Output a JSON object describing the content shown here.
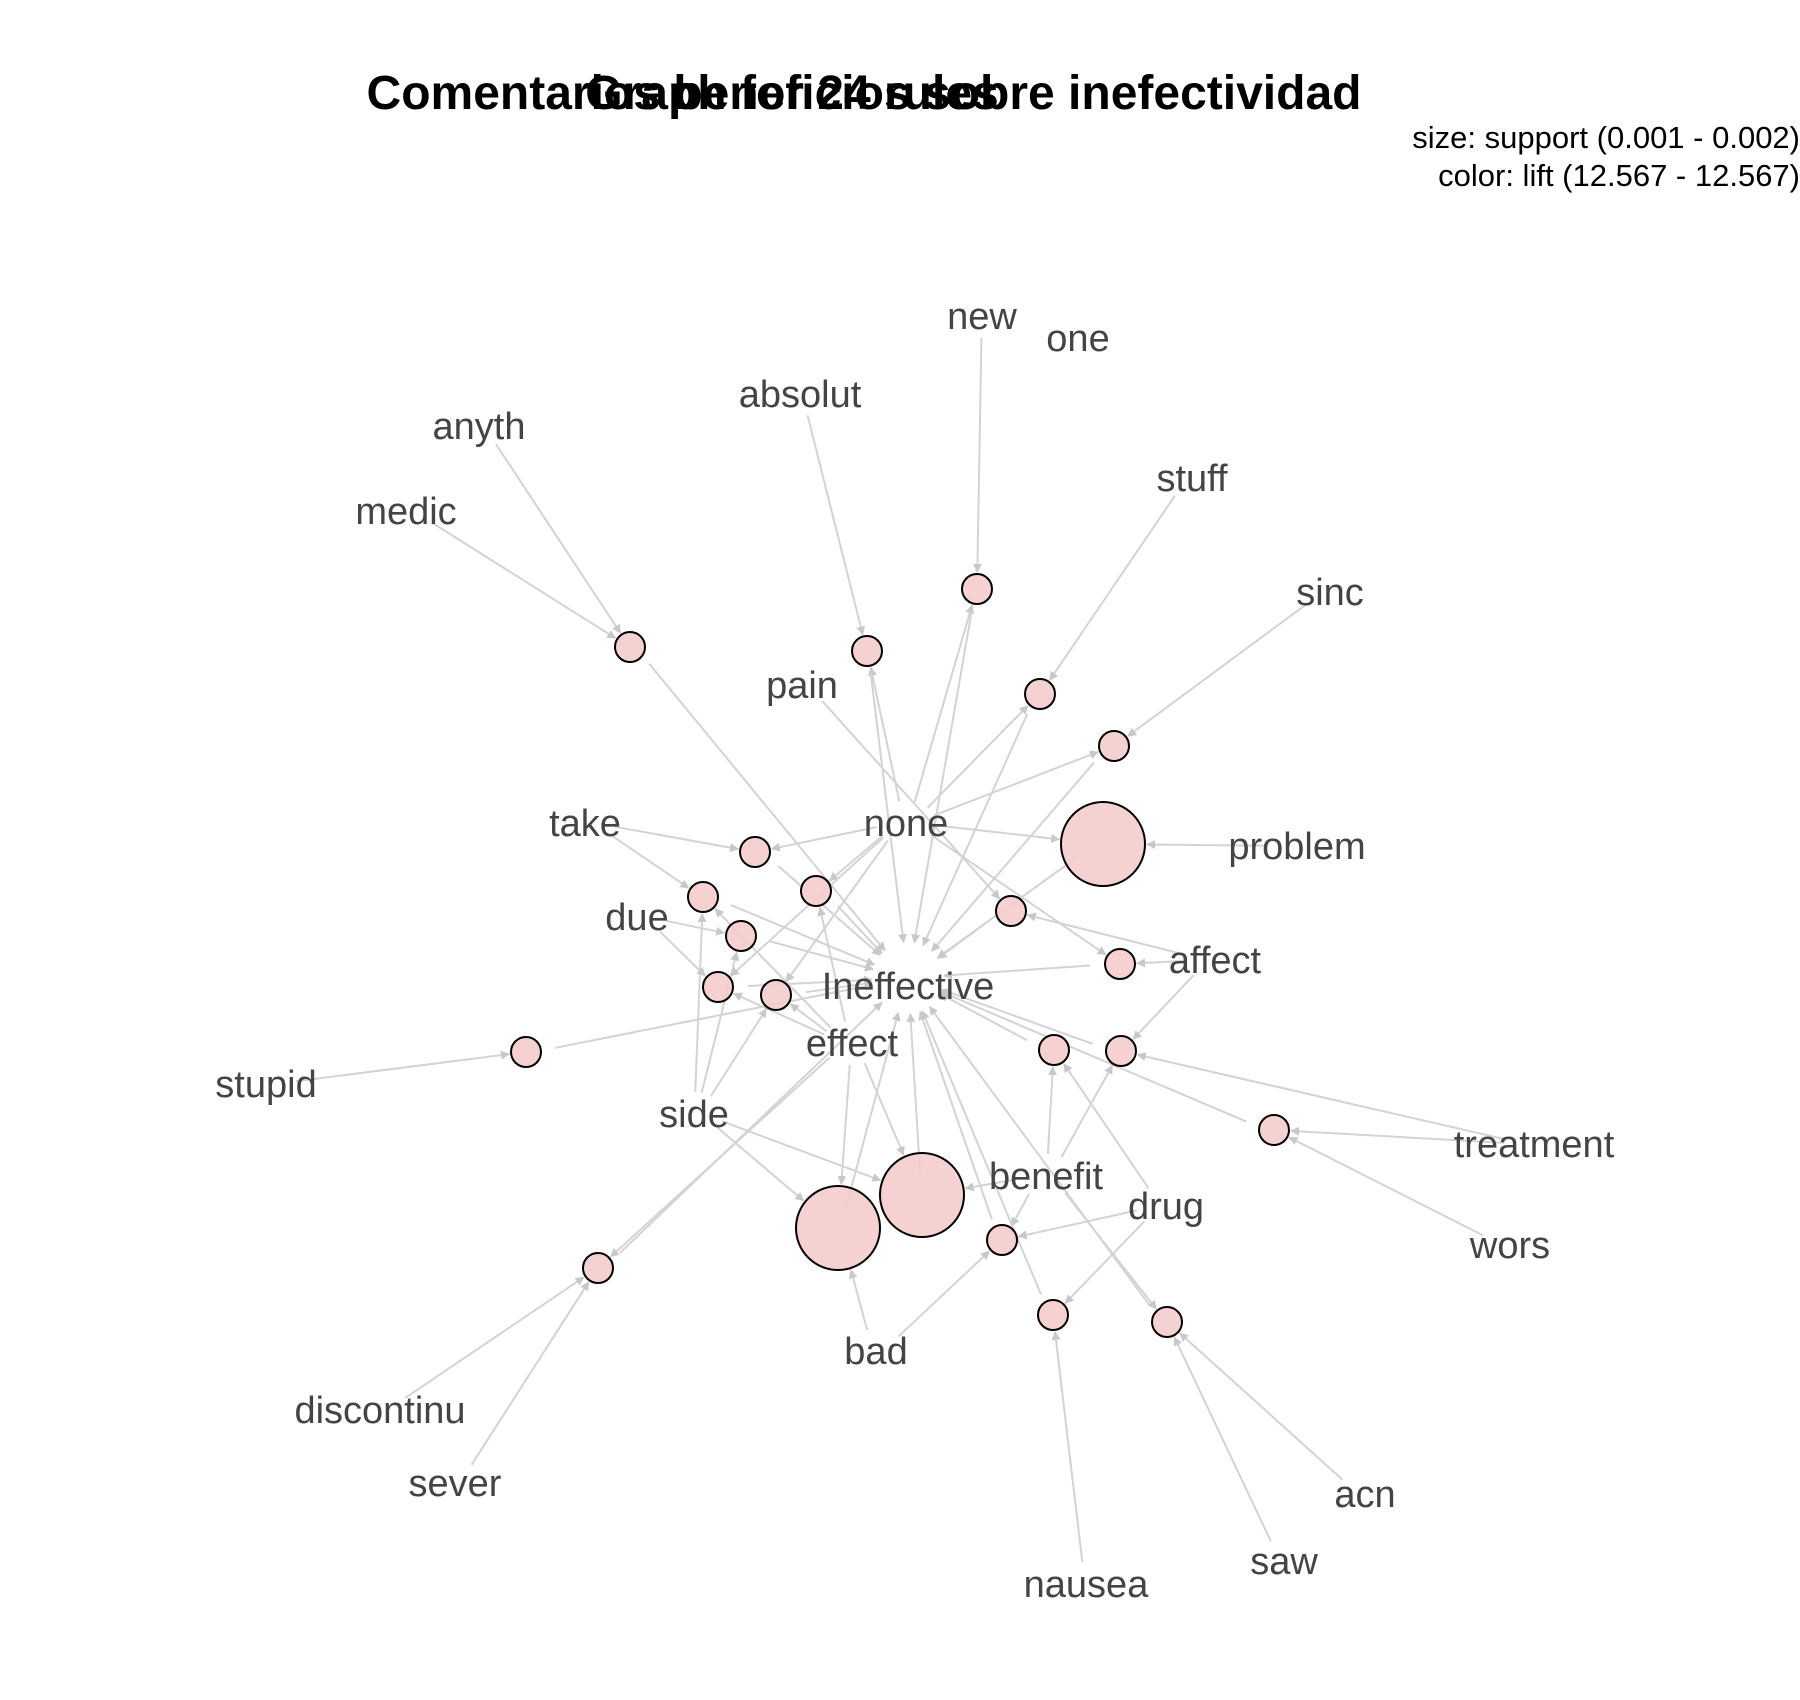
{
  "titles": {
    "back": "Comentarios beneficios sobre inefectividad",
    "front": "Graph for 24 rules"
  },
  "legend": {
    "size": "size: support (0.001 - 0.002)",
    "color": "color: lift (12.567 - 12.567)"
  },
  "colors": {
    "node_fill": "#f4cccc",
    "node_stroke": "#000000",
    "edge": "#d3d3d3",
    "label": "#444444"
  },
  "items": [
    {
      "id": "new",
      "label": "new"
    },
    {
      "id": "one",
      "label": "one"
    },
    {
      "id": "absolut",
      "label": "absolut"
    },
    {
      "id": "anyth",
      "label": "anyth"
    },
    {
      "id": "stuff",
      "label": "stuff"
    },
    {
      "id": "medic",
      "label": "medic"
    },
    {
      "id": "sinc",
      "label": "sinc"
    },
    {
      "id": "pain",
      "label": "pain"
    },
    {
      "id": "take",
      "label": "take"
    },
    {
      "id": "none",
      "label": "none"
    },
    {
      "id": "problem",
      "label": "problem"
    },
    {
      "id": "due",
      "label": "due"
    },
    {
      "id": "affect",
      "label": "affect"
    },
    {
      "id": "ineffective",
      "label": "Ineffective"
    },
    {
      "id": "effect",
      "label": "effect"
    },
    {
      "id": "stupid",
      "label": "stupid"
    },
    {
      "id": "side",
      "label": "side"
    },
    {
      "id": "treatment",
      "label": "treatment"
    },
    {
      "id": "benefit",
      "label": "benefit"
    },
    {
      "id": "drug",
      "label": "drug"
    },
    {
      "id": "wors",
      "label": "wors"
    },
    {
      "id": "bad",
      "label": "bad"
    },
    {
      "id": "discontinu",
      "label": "discontinu"
    },
    {
      "id": "acn",
      "label": "acn"
    },
    {
      "id": "sever",
      "label": "sever"
    },
    {
      "id": "saw",
      "label": "saw"
    },
    {
      "id": "nausea",
      "label": "nausea"
    }
  ],
  "rules": [
    {
      "id": "r1",
      "lhs": [
        "new",
        "none"
      ],
      "rhs": "ineffective",
      "support": 0.001,
      "lift": 12.567
    },
    {
      "id": "r2",
      "lhs": [
        "absolut",
        "none"
      ],
      "rhs": "ineffective",
      "support": 0.001,
      "lift": 12.567
    },
    {
      "id": "r3",
      "lhs": [
        "anyth",
        "medic"
      ],
      "rhs": "ineffective",
      "support": 0.001,
      "lift": 12.567
    },
    {
      "id": "r4",
      "lhs": [
        "stuff",
        "none"
      ],
      "rhs": "ineffective",
      "support": 0.001,
      "lift": 12.567
    },
    {
      "id": "r5",
      "lhs": [
        "sinc",
        "none"
      ],
      "rhs": "ineffective",
      "support": 0.001,
      "lift": 12.567
    },
    {
      "id": "r6",
      "lhs": [
        "problem",
        "none"
      ],
      "rhs": "ineffective",
      "support": 0.002,
      "lift": 12.567
    },
    {
      "id": "r7",
      "lhs": [
        "pain",
        "affect"
      ],
      "rhs": "ineffective",
      "support": 0.001,
      "lift": 12.567
    },
    {
      "id": "r8",
      "lhs": [
        "affect",
        "none"
      ],
      "rhs": "ineffective",
      "support": 0.001,
      "lift": 12.567
    },
    {
      "id": "r9",
      "lhs": [
        "take",
        "none"
      ],
      "rhs": "ineffective",
      "support": 0.001,
      "lift": 12.567
    },
    {
      "id": "r10",
      "lhs": [
        "take",
        "side",
        "effect"
      ],
      "rhs": "ineffective",
      "support": 0.001,
      "lift": 12.567
    },
    {
      "id": "r11",
      "lhs": [
        "none",
        "effect"
      ],
      "rhs": "ineffective",
      "support": 0.001,
      "lift": 12.567
    },
    {
      "id": "r12",
      "lhs": [
        "due",
        "side"
      ],
      "rhs": "ineffective",
      "support": 0.001,
      "lift": 12.567
    },
    {
      "id": "r13",
      "lhs": [
        "due",
        "none",
        "effect"
      ],
      "rhs": "ineffective",
      "support": 0.001,
      "lift": 12.567
    },
    {
      "id": "r14",
      "lhs": [
        "side",
        "effect",
        "none"
      ],
      "rhs": "ineffective",
      "support": 0.001,
      "lift": 12.567
    },
    {
      "id": "r15",
      "lhs": [
        "stupid"
      ],
      "rhs": "ineffective",
      "support": 0.001,
      "lift": 12.567
    },
    {
      "id": "r16",
      "lhs": [
        "treatment",
        "wors"
      ],
      "rhs": "ineffective",
      "support": 0.001,
      "lift": 12.567
    },
    {
      "id": "r17",
      "lhs": [
        "drug",
        "benefit"
      ],
      "rhs": "ineffective",
      "support": 0.001,
      "lift": 12.567
    },
    {
      "id": "r18",
      "lhs": [
        "side",
        "effect",
        "bad"
      ],
      "rhs": "ineffective",
      "support": 0.002,
      "lift": 12.567
    },
    {
      "id": "r19",
      "lhs": [
        "benefit",
        "effect",
        "side"
      ],
      "rhs": "ineffective",
      "support": 0.002,
      "lift": 12.567
    },
    {
      "id": "r20",
      "lhs": [
        "discontinu",
        "sever",
        "effect"
      ],
      "rhs": "ineffective",
      "support": 0.001,
      "lift": 12.567
    },
    {
      "id": "r21",
      "lhs": [
        "bad",
        "benefit",
        "drug"
      ],
      "rhs": "ineffective",
      "support": 0.001,
      "lift": 12.567
    },
    {
      "id": "r22",
      "lhs": [
        "drug",
        "nausea"
      ],
      "rhs": "ineffective",
      "support": 0.001,
      "lift": 12.567
    },
    {
      "id": "r23",
      "lhs": [
        "acn",
        "saw",
        "benefit"
      ],
      "rhs": "ineffective",
      "support": 0.001,
      "lift": 12.567
    },
    {
      "id": "r24",
      "lhs": [
        "treatment",
        "affect",
        "benefit"
      ],
      "rhs": "ineffective",
      "support": 0.001,
      "lift": 12.567
    }
  ]
}
